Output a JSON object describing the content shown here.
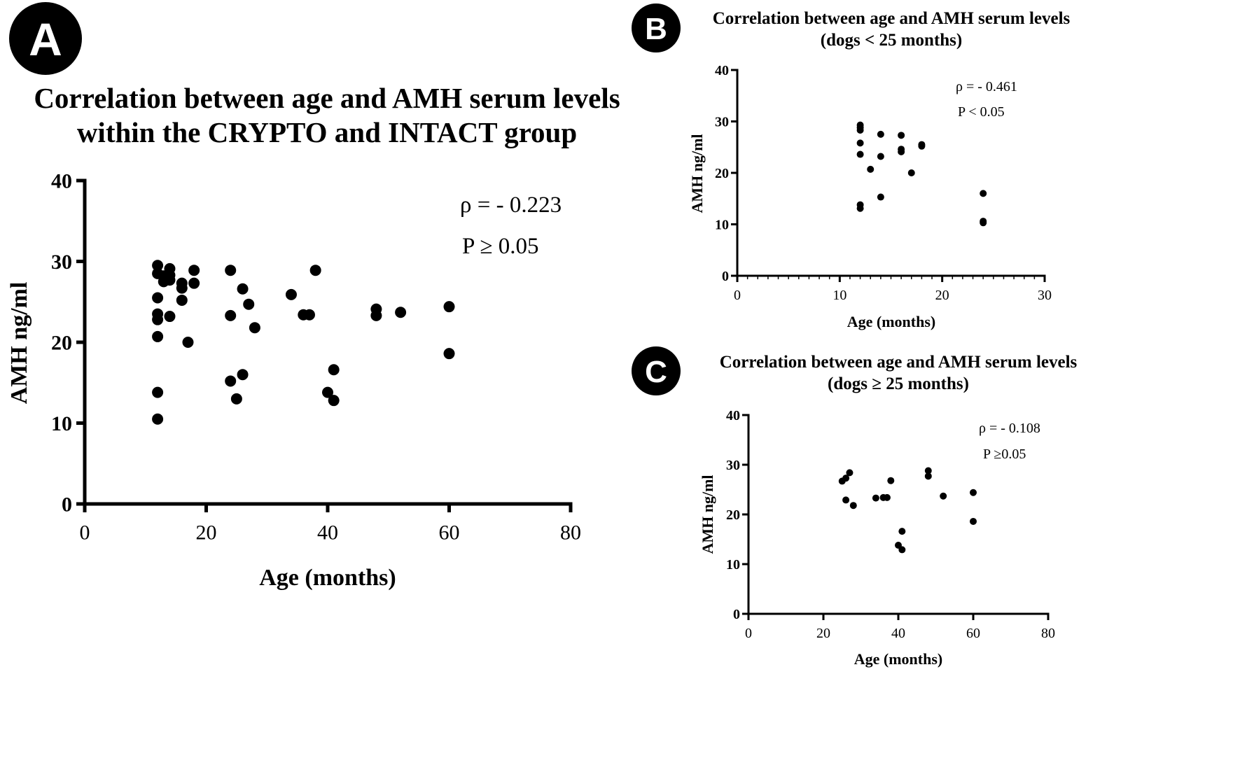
{
  "figure": {
    "panels": [
      {
        "id": "A",
        "badge": "A",
        "title_lines": [
          "Correlation between age and AMH serum levels",
          "within the CRYPTO and INTACT group"
        ],
        "stats_lines": [
          "ρ = - 0.223",
          "P ≥ 0.05"
        ]
      },
      {
        "id": "B",
        "badge": "B",
        "title_lines": [
          "Correlation between age and AMH serum levels",
          "(dogs < 25 months)"
        ],
        "stats_lines": [
          "ρ = - 0.461",
          "P < 0.05"
        ]
      },
      {
        "id": "C",
        "badge": "C",
        "title_lines": [
          "Correlation between age and AMH serum levels",
          "(dogs ≥ 25 months)"
        ],
        "stats_lines": [
          "ρ = - 0.108",
          "P ≥0.05"
        ]
      }
    ]
  },
  "chart_data": [
    {
      "type": "scatter",
      "panel": "A",
      "title": "Correlation between age and AMH serum levels within the CRYPTO and INTACT group",
      "xlabel": "Age (months)",
      "ylabel": "AMH ng/ml",
      "xlim": [
        0,
        80
      ],
      "ylim": [
        0,
        40
      ],
      "xticks": [
        0,
        20,
        40,
        60,
        80
      ],
      "yticks": [
        0,
        10,
        20,
        30,
        40
      ],
      "annotations": [
        "ρ = - 0.223",
        "P ≥ 0.05"
      ],
      "x": [
        12,
        12,
        12,
        12,
        12,
        12,
        12,
        12,
        13,
        13,
        14,
        14,
        14,
        14,
        16,
        16,
        16,
        17,
        18,
        18,
        24,
        24,
        24,
        25,
        26,
        26,
        27,
        28,
        34,
        36,
        37,
        38,
        40,
        41,
        41,
        48,
        48,
        52,
        60,
        60
      ],
      "y": [
        29.5,
        28.5,
        25.5,
        23.5,
        22.8,
        20.7,
        13.8,
        10.5,
        28.2,
        27.5,
        29.1,
        28.3,
        27.7,
        23.2,
        27.3,
        26.7,
        25.2,
        20.0,
        28.9,
        27.3,
        28.9,
        23.3,
        15.2,
        13.0,
        26.6,
        16.0,
        24.7,
        21.8,
        25.9,
        23.4,
        23.4,
        28.9,
        13.8,
        16.6,
        12.8,
        24.1,
        23.3,
        23.7,
        24.4,
        18.6
      ]
    },
    {
      "type": "scatter",
      "panel": "B",
      "title": "Correlation between age and AMH serum levels (dogs < 25 months)",
      "xlabel": "Age (months)",
      "ylabel": "AMH ng/ml",
      "xlim": [
        0,
        30
      ],
      "ylim": [
        0,
        40
      ],
      "xticks": [
        0,
        10,
        20,
        30
      ],
      "yticks": [
        0,
        10,
        20,
        30,
        40
      ],
      "annotations": [
        "ρ = - 0.461",
        "P < 0.05"
      ],
      "x": [
        12,
        12,
        12,
        12,
        12,
        12,
        12,
        13,
        14,
        14,
        14,
        16,
        16,
        16,
        17,
        18,
        18,
        24,
        24,
        24
      ],
      "y": [
        29.3,
        28.8,
        28.3,
        25.8,
        23.6,
        13.8,
        13.1,
        20.7,
        27.5,
        23.2,
        15.3,
        27.3,
        24.6,
        24.1,
        20.0,
        25.5,
        25.2,
        16.0,
        10.6,
        10.3
      ]
    },
    {
      "type": "scatter",
      "panel": "C",
      "title": "Correlation between age and AMH serum levels (dogs ≥ 25 months)",
      "xlabel": "Age (months)",
      "ylabel": "AMH ng/ml",
      "xlim": [
        0,
        80
      ],
      "ylim": [
        0,
        40
      ],
      "xticks": [
        0,
        20,
        40,
        60,
        80
      ],
      "yticks": [
        0,
        10,
        20,
        30,
        40
      ],
      "annotations": [
        "ρ = - 0.108",
        "P ≥0.05"
      ],
      "x": [
        25,
        26,
        26,
        27,
        28,
        34,
        36,
        37,
        38,
        40,
        41,
        41,
        48,
        48,
        52,
        60,
        60
      ],
      "y": [
        26.7,
        27.3,
        22.9,
        28.4,
        21.8,
        23.3,
        23.4,
        23.4,
        26.8,
        13.8,
        16.6,
        12.9,
        28.8,
        27.7,
        23.7,
        24.4,
        18.6
      ]
    }
  ]
}
